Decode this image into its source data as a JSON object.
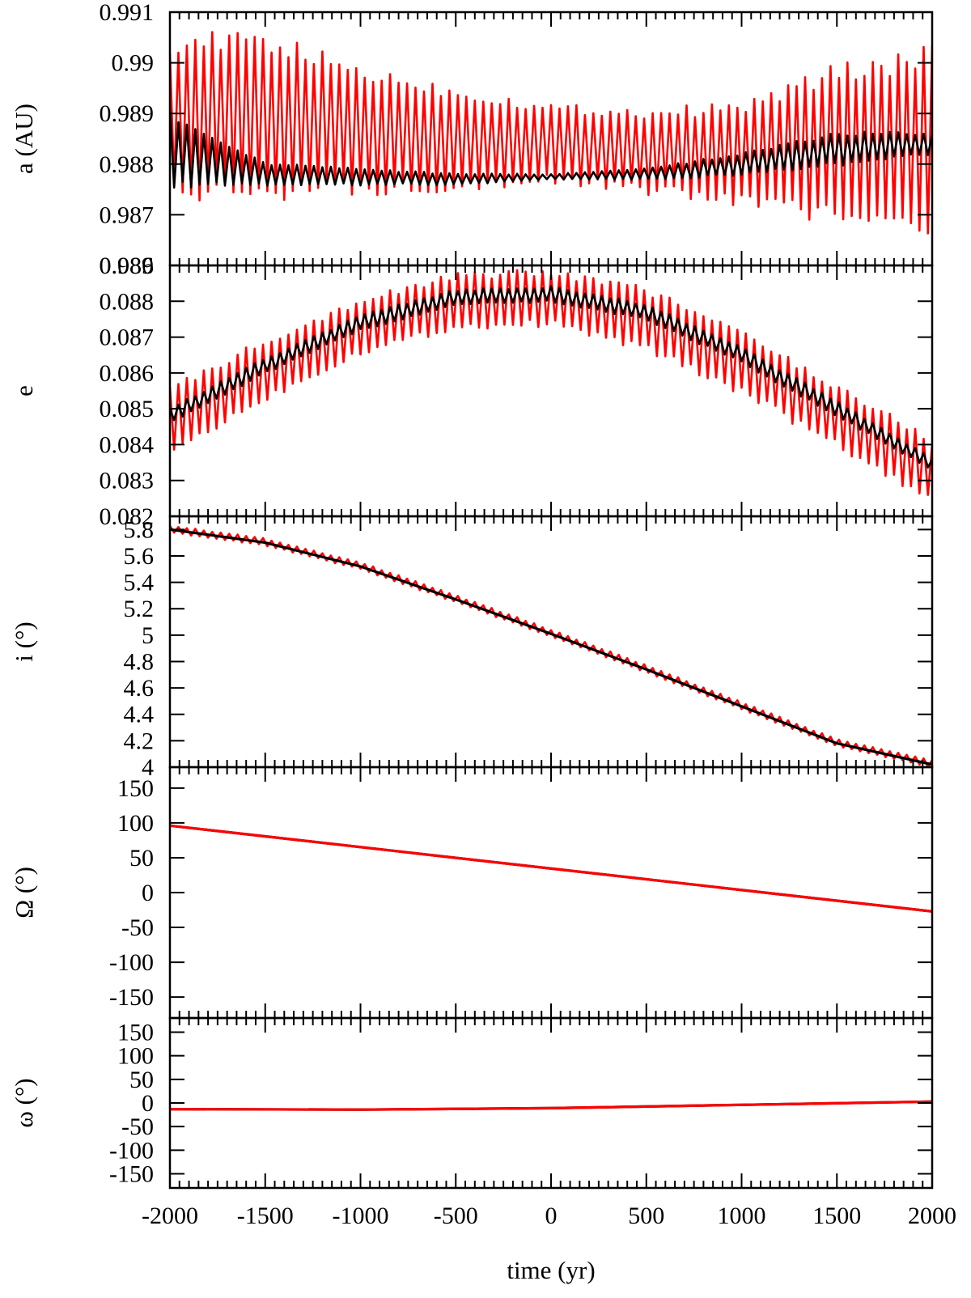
{
  "chart_data": [
    {
      "type": "line",
      "ylabel": "a (AU)",
      "xlim": [
        -2000,
        2000
      ],
      "ylim": [
        0.986,
        0.991
      ],
      "yticks": [
        "0.986",
        "0.987",
        "0.988",
        "0.989",
        "0.99",
        "0.991"
      ],
      "show_xtick_labels": false,
      "series": [
        {
          "color": "#ff0000",
          "band": true,
          "x": [
            -2000,
            -1500,
            -1000,
            -500,
            0,
            500,
            1000,
            1500,
            2000
          ],
          "upper": [
            0.9904,
            0.9904,
            0.9898,
            0.9894,
            0.9891,
            0.989,
            0.9891,
            0.9898,
            0.9901
          ],
          "lower": [
            0.9874,
            0.9875,
            0.9875,
            0.9876,
            0.9877,
            0.9875,
            0.9873,
            0.987,
            0.9867
          ],
          "values": [
            0.9889,
            0.9889,
            0.9887,
            0.9885,
            0.9884,
            0.9883,
            0.9882,
            0.9884,
            0.9884
          ]
        },
        {
          "color": "#000000",
          "band": true,
          "x": [
            -2000,
            -1500,
            -1000,
            -500,
            0,
            500,
            1000,
            1500,
            2000
          ],
          "upper": [
            0.989,
            0.988,
            0.9879,
            0.9878,
            0.9878,
            0.9879,
            0.9882,
            0.9886,
            0.9886
          ],
          "lower": [
            0.9876,
            0.9876,
            0.9876,
            0.9876,
            0.9877,
            0.9877,
            0.9878,
            0.988,
            0.9882
          ],
          "values": [
            0.9883,
            0.9878,
            0.9877,
            0.9877,
            0.98775,
            0.9878,
            0.988,
            0.9883,
            0.9884
          ]
        }
      ]
    },
    {
      "type": "line",
      "ylabel": "e",
      "xlim": [
        -2000,
        2000
      ],
      "ylim": [
        0.082,
        0.089
      ],
      "yticks": [
        "0.082",
        "0.083",
        "0.084",
        "0.085",
        "0.086",
        "0.087",
        "0.088",
        "0.089"
      ],
      "show_xtick_labels": false,
      "series": [
        {
          "color": "#ff0000",
          "band": true,
          "x": [
            -2000,
            -1500,
            -1000,
            -500,
            0,
            500,
            1000,
            1500,
            2000
          ],
          "upper": [
            0.0855,
            0.0869,
            0.088,
            0.0887,
            0.0888,
            0.0883,
            0.0871,
            0.0856,
            0.0841
          ],
          "lower": [
            0.0838,
            0.0853,
            0.0866,
            0.0873,
            0.0874,
            0.0867,
            0.0855,
            0.084,
            0.0824
          ],
          "values": [
            0.0847,
            0.0861,
            0.0873,
            0.088,
            0.0881,
            0.0875,
            0.0863,
            0.0848,
            0.0833
          ]
        },
        {
          "color": "#000000",
          "band": true,
          "x": [
            -2000,
            -1500,
            -1000,
            -500,
            0,
            500,
            1000,
            1500,
            2000
          ],
          "upper": [
            0.085,
            0.0864,
            0.0876,
            0.0883,
            0.0884,
            0.0879,
            0.0867,
            0.0852,
            0.0836
          ],
          "lower": [
            0.0846,
            0.086,
            0.0872,
            0.0879,
            0.088,
            0.0875,
            0.0863,
            0.0848,
            0.0833
          ],
          "values": [
            0.0848,
            0.0862,
            0.0874,
            0.0881,
            0.0882,
            0.0877,
            0.0865,
            0.085,
            0.0834
          ]
        }
      ]
    },
    {
      "type": "line",
      "ylabel": "i (°)",
      "xlim": [
        -2000,
        2000
      ],
      "ylim": [
        4,
        5.9
      ],
      "yticks": [
        "4",
        "4.2",
        "4.4",
        "4.6",
        "4.8",
        "5",
        "5.2",
        "5.4",
        "5.6",
        "5.8"
      ],
      "show_xtick_labels": false,
      "series": [
        {
          "color": "#ff0000",
          "band": true,
          "x": [
            -2000,
            -1500,
            -1000,
            -500,
            0,
            500,
            1000,
            1500,
            2000
          ],
          "upper": [
            5.83,
            5.73,
            5.55,
            5.3,
            5.04,
            4.77,
            4.49,
            4.21,
            4.05
          ],
          "lower": [
            5.78,
            5.68,
            5.5,
            5.25,
            4.99,
            4.72,
            4.44,
            4.16,
            4.0
          ],
          "values": [
            5.805,
            5.705,
            5.525,
            5.275,
            5.015,
            4.745,
            4.465,
            4.185,
            4.025
          ]
        },
        {
          "color": "#000000",
          "band": false,
          "x": [
            -2000,
            -1500,
            -1000,
            -500,
            0,
            500,
            1000,
            1500,
            2000
          ],
          "values": [
            5.8,
            5.7,
            5.52,
            5.27,
            5.01,
            4.74,
            4.46,
            4.18,
            4.02
          ]
        }
      ]
    },
    {
      "type": "line",
      "ylabel": "Ω (°)",
      "xlim": [
        -2000,
        2000
      ],
      "ylim": [
        -180,
        180
      ],
      "yticks": [
        "-150",
        "-100",
        "-50",
        "0",
        "50",
        "100",
        "150"
      ],
      "show_xtick_labels": false,
      "series": [
        {
          "color": "#000000",
          "band": false,
          "x": [
            -2000,
            2000
          ],
          "values": [
            96,
            -27
          ]
        },
        {
          "color": "#ff0000",
          "band": false,
          "x": [
            -2000,
            2000
          ],
          "values": [
            96,
            -27
          ]
        }
      ]
    },
    {
      "type": "line",
      "ylabel": "ω (°)",
      "xlabel": "time (yr)",
      "xlim": [
        -2000,
        2000
      ],
      "ylim": [
        -180,
        180
      ],
      "yticks": [
        "-150",
        "-100",
        "-50",
        "0",
        "50",
        "100",
        "150"
      ],
      "xticks": [
        "-2000",
        "-1500",
        "-1000",
        "-500",
        "0",
        "500",
        "1000",
        "1500",
        "2000"
      ],
      "show_xtick_labels": true,
      "series": [
        {
          "color": "#000000",
          "band": false,
          "x": [
            -2000,
            -1000,
            0,
            1000,
            2000
          ],
          "values": [
            -13,
            -14,
            -11,
            -4,
            3
          ]
        },
        {
          "color": "#ff0000",
          "band": false,
          "x": [
            -2000,
            -1000,
            0,
            1000,
            2000
          ],
          "values": [
            -13,
            -14,
            -11,
            -4,
            3
          ]
        }
      ]
    }
  ]
}
